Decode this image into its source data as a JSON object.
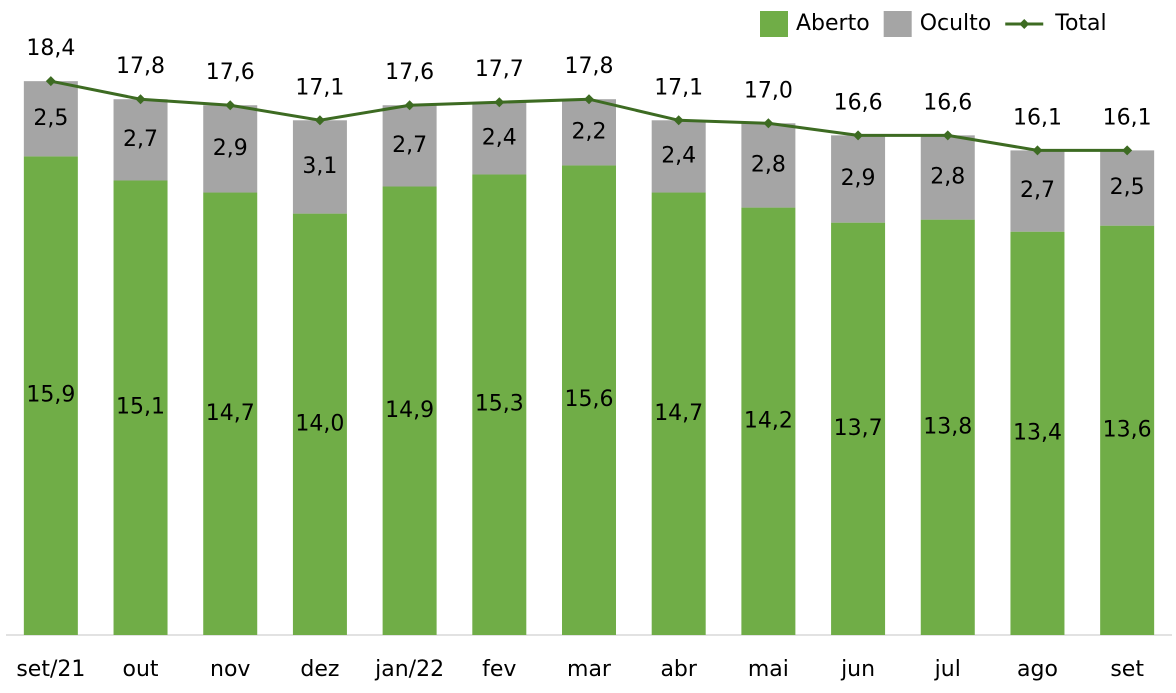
{
  "chart_data": {
    "type": "bar",
    "stacked": true,
    "categories": [
      "set/21",
      "out",
      "nov",
      "dez",
      "jan/22",
      "fev",
      "mar",
      "abr",
      "mai",
      "jun",
      "jul",
      "ago",
      "set"
    ],
    "series": [
      {
        "name": "Aberto",
        "type": "bar",
        "color": "#70ad47",
        "values": [
          15.9,
          15.1,
          14.7,
          14.0,
          14.9,
          15.3,
          15.6,
          14.7,
          14.2,
          13.7,
          13.8,
          13.4,
          13.6
        ],
        "value_labels": [
          "15,9",
          "15,1",
          "14,7",
          "14,0",
          "14,9",
          "15,3",
          "15,6",
          "14,7",
          "14,2",
          "13,7",
          "13,8",
          "13,4",
          "13,6"
        ]
      },
      {
        "name": "Oculto",
        "type": "bar",
        "color": "#a5a5a5",
        "values": [
          2.5,
          2.7,
          2.9,
          3.1,
          2.7,
          2.4,
          2.2,
          2.4,
          2.8,
          2.9,
          2.8,
          2.7,
          2.5
        ],
        "value_labels": [
          "2,5",
          "2,7",
          "2,9",
          "3,1",
          "2,7",
          "2,4",
          "2,2",
          "2,4",
          "2,8",
          "2,9",
          "2,8",
          "2,7",
          "2,5"
        ]
      },
      {
        "name": "Total",
        "type": "line",
        "color": "#3d6b22",
        "values": [
          18.4,
          17.8,
          17.6,
          17.1,
          17.6,
          17.7,
          17.8,
          17.1,
          17.0,
          16.6,
          16.6,
          16.1,
          16.1
        ],
        "value_labels": [
          "18,4",
          "17,8",
          "17,6",
          "17,1",
          "17,6",
          "17,7",
          "17,8",
          "17,1",
          "17,0",
          "16,6",
          "16,6",
          "16,1",
          "16,1"
        ]
      }
    ],
    "ylim": [
      0,
      20
    ],
    "legend": "top-right"
  }
}
